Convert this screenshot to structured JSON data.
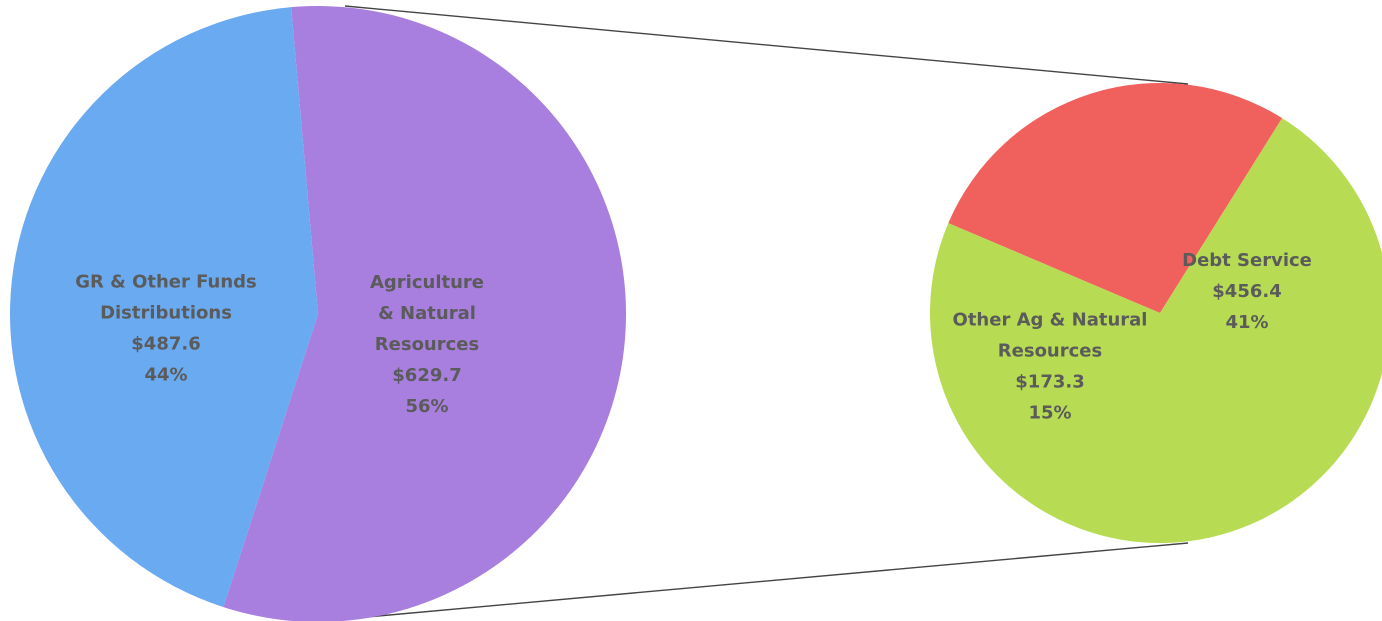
{
  "chart_data": [
    {
      "type": "pie",
      "title": "",
      "colors": [
        "#6aaaf0",
        "#a87fde"
      ],
      "slices": [
        {
          "lines": [
            "GR & Other Funds",
            "Distributions"
          ],
          "value_label": "$487.6",
          "value": 487.6,
          "percent_label": "44%",
          "percent": 44
        },
        {
          "lines": [
            "Agriculture",
            "& Natural",
            "Resources"
          ],
          "value_label": "$629.7",
          "value": 629.7,
          "percent_label": "56%",
          "percent": 56
        }
      ]
    },
    {
      "type": "pie",
      "title": "",
      "colors": [
        "#b7dc54",
        "#f0615d"
      ],
      "slices": [
        {
          "lines": [
            "Debt Service"
          ],
          "value_label": "$456.4",
          "value": 456.4,
          "percent_label": "41%",
          "percent": 41
        },
        {
          "lines": [
            "Other Ag & Natural",
            "Resources"
          ],
          "value_label": "$173.3",
          "value": 173.3,
          "percent_label": "15%",
          "percent": 15
        }
      ]
    }
  ]
}
